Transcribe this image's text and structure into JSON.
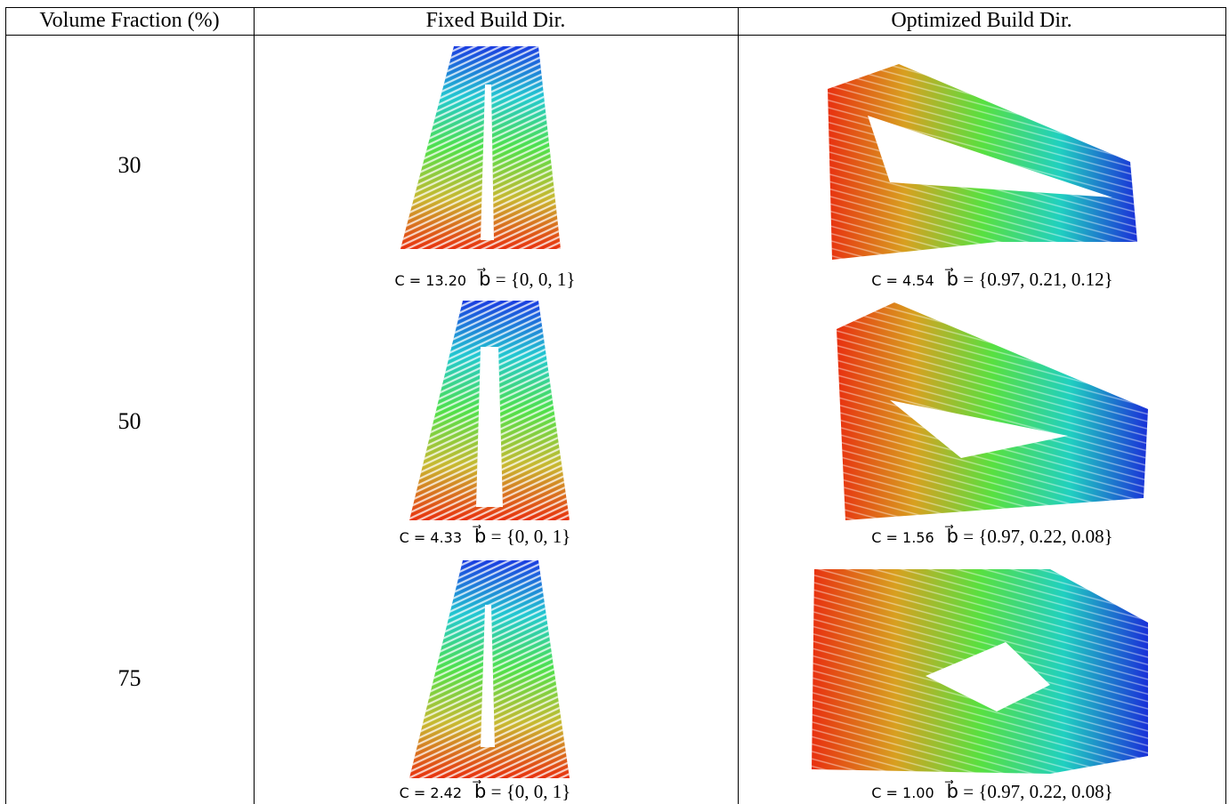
{
  "table": {
    "header": [
      "Volume Fraction (%)",
      "Fixed Build Dir.",
      "Optimized Build Dir."
    ],
    "rows": [
      {
        "volume_fraction": "30",
        "fixed": {
          "c": "C = 13.20",
          "b": "b⃗ = {0, 0, 1}"
        },
        "optimized": {
          "c": "C = 4.54",
          "b": "b⃗ = {0.97, 0.21, 0.12}"
        }
      },
      {
        "volume_fraction": "50",
        "fixed": {
          "c": "C = 4.33",
          "b": "b⃗ = {0, 0, 1}"
        },
        "optimized": {
          "c": "C = 1.56",
          "b": "b⃗ = {0.97, 0.22, 0.08}"
        }
      },
      {
        "volume_fraction": "75",
        "fixed": {
          "c": "C = 2.42",
          "b": "b⃗ = {0, 0, 1}"
        },
        "optimized": {
          "c": "C = 1.00",
          "b": "b⃗ = {0.97, 0.22, 0.08}"
        }
      }
    ]
  }
}
